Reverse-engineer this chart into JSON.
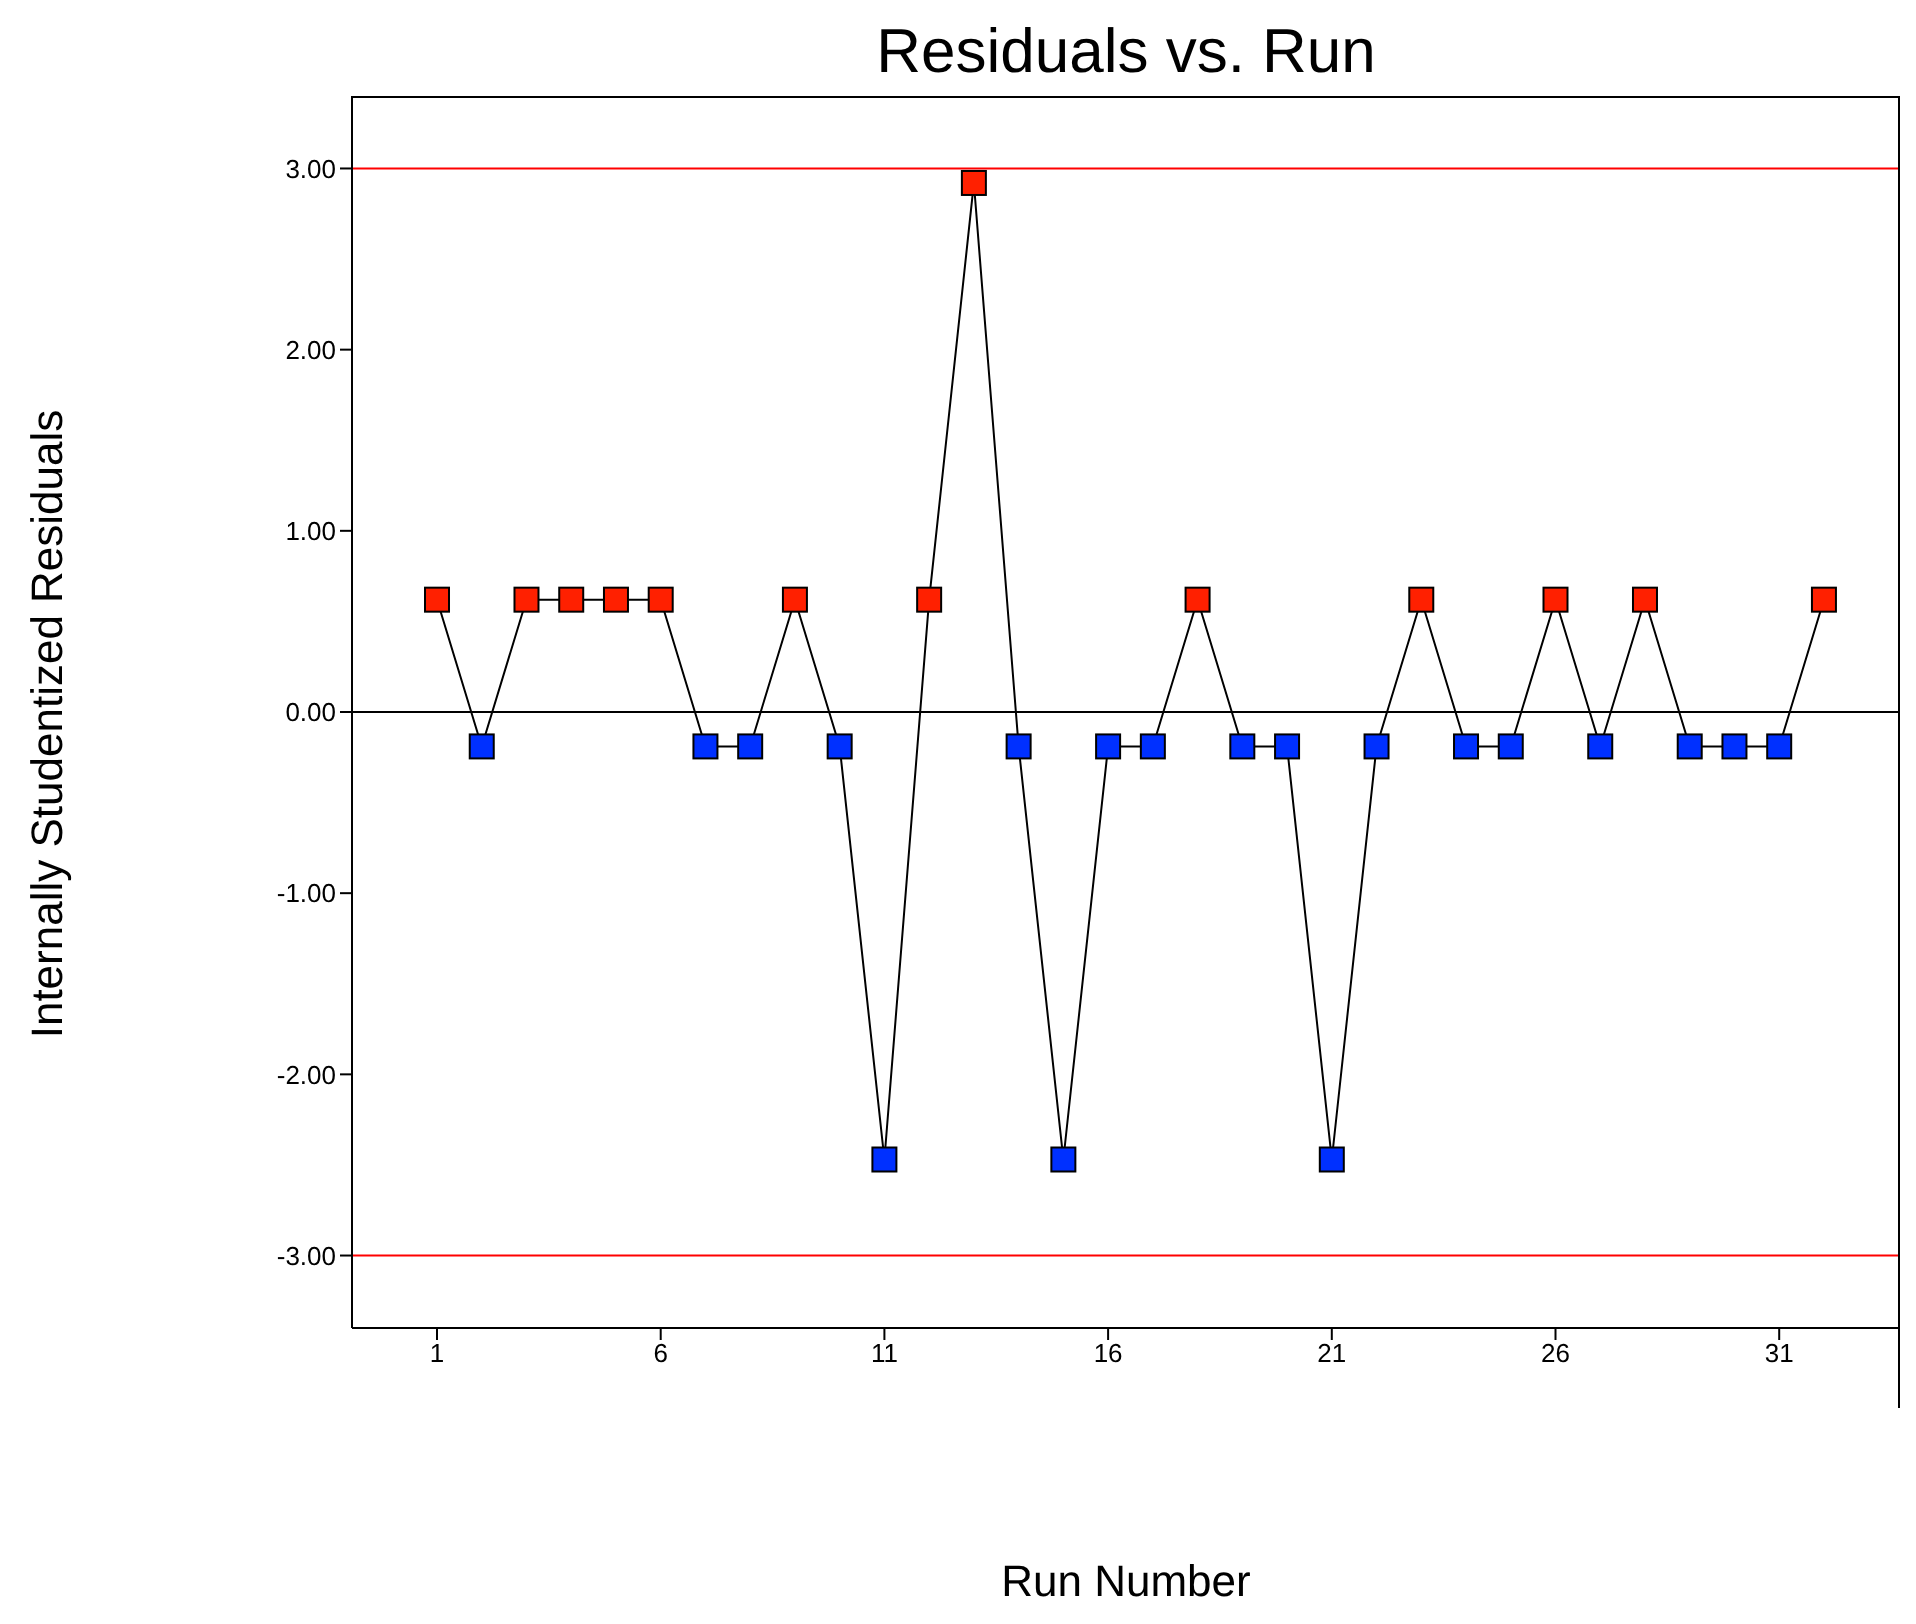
{
  "chart_data": {
    "type": "line",
    "title": "Residuals vs. Run",
    "xlabel": "Run Number",
    "ylabel": "Internally Studentized Residuals",
    "xlim": [
      -0.9,
      33.7
    ],
    "xticks": [
      1,
      6,
      11,
      16,
      21,
      26,
      31
    ],
    "ylim": [
      -3.4,
      3.4
    ],
    "yticks": [
      {
        "value": -3,
        "label": "-3.00"
      },
      {
        "value": -2,
        "label": "-2.00"
      },
      {
        "value": -1,
        "label": "-1.00"
      },
      {
        "value": 0,
        "label": "0.00"
      },
      {
        "value": 1,
        "label": "1.00"
      },
      {
        "value": 2,
        "label": "2.00"
      },
      {
        "value": 3,
        "label": "3.00"
      }
    ],
    "marker": "square",
    "line_style": "solid",
    "series": [
      {
        "color": "#000000",
        "x": [
          1,
          2,
          3,
          4,
          5,
          6,
          7,
          8,
          9,
          10,
          11,
          12,
          13,
          14,
          15,
          16,
          17,
          18,
          19,
          20,
          21,
          22,
          23,
          24,
          25,
          26,
          27,
          28,
          29,
          30,
          31,
          32
        ],
        "values": [
          0.62,
          -0.19,
          0.62,
          0.62,
          0.62,
          0.62,
          -0.19,
          -0.19,
          0.62,
          -0.19,
          -2.47,
          0.62,
          2.92,
          -0.19,
          -2.47,
          -0.19,
          -0.19,
          0.62,
          -0.19,
          -0.19,
          -2.47,
          -0.19,
          0.62,
          -0.19,
          -0.19,
          0.62,
          -0.19,
          0.62,
          -0.19,
          -0.19,
          -0.19,
          0.62
        ],
        "colors": [
          "#ff2000",
          "#0030ff",
          "#ff2000",
          "#ff2000",
          "#ff2000",
          "#ff2000",
          "#0030ff",
          "#0030ff",
          "#ff2000",
          "#0030ff",
          "#0030ff",
          "#ff2000",
          "#ff2000",
          "#0030ff",
          "#0030ff",
          "#0030ff",
          "#0030ff",
          "#ff2000",
          "#0030ff",
          "#0030ff",
          "#0030ff",
          "#0030ff",
          "#ff2000",
          "#0030ff",
          "#0030ff",
          "#ff2000",
          "#0030ff",
          "#ff2000",
          "#0030ff",
          "#0030ff",
          "#0030ff",
          "#ff2000"
        ]
      }
    ],
    "ref_lines": [
      {
        "axis": "y",
        "value": 3,
        "color": "#ff0000"
      },
      {
        "axis": "y",
        "value": -3,
        "color": "#ff0000"
      },
      {
        "axis": "y",
        "value": 0,
        "color": "#000000"
      }
    ]
  }
}
